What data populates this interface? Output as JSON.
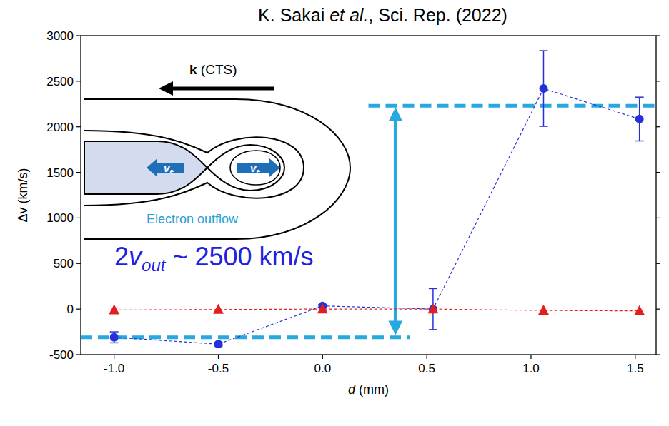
{
  "chart_data": {
    "type": "scatter",
    "title": [
      "K. Sakai ",
      "et al.",
      ", Sci. Rep. (2022)"
    ],
    "x_label": [
      "d",
      " (mm)"
    ],
    "y_label": "Δv (km/s)",
    "x": [
      -1.0,
      -0.5,
      0.0,
      0.53,
      1.06,
      1.52
    ],
    "series": [
      {
        "color": "#2630d8",
        "marker": "circle",
        "line_style": "dashed",
        "values": [
          -310,
          -385,
          35,
          0,
          2420,
          2085
        ],
        "errors": [
          60,
          20,
          15,
          225,
          415,
          240
        ]
      },
      {
        "color": "#e41e1e",
        "marker": "triangle",
        "line_style": "dashed",
        "values": [
          -10,
          -5,
          0,
          0,
          -15,
          -20
        ]
      }
    ],
    "xlim": [
      -1.16,
      1.6
    ],
    "ylim": [
      -500,
      3000
    ],
    "xticks": [
      {
        "value": -1.0,
        "label": "-1.0"
      },
      {
        "value": -0.5,
        "label": "-0.5"
      },
      {
        "value": 0.0,
        "label": "0.0"
      },
      {
        "value": 0.5,
        "label": "0.5"
      },
      {
        "value": 1.0,
        "label": "1.0"
      },
      {
        "value": 1.5,
        "label": "1.5"
      }
    ],
    "yticks": [
      -500,
      0,
      500,
      1000,
      1500,
      2000,
      2500,
      3000
    ],
    "grid": false,
    "annotations": {
      "label": [
        "2",
        "v",
        "out",
        " ~ 2500 km/s"
      ],
      "ref_lines": [
        {
          "y": 2230,
          "x": [
            0.22,
            1.6
          ]
        },
        {
          "y": -310,
          "x": [
            -1.16,
            0.42
          ]
        }
      ],
      "arrow": {
        "x": 0.35,
        "y": [
          -300,
          2230
        ]
      },
      "color": "#29a8e0",
      "inset": {
        "k_label": [
          "k",
          " (CTS)"
        ],
        "v_label": [
          "v",
          "e"
        ],
        "outflow_label": "Electron outflow"
      }
    }
  }
}
